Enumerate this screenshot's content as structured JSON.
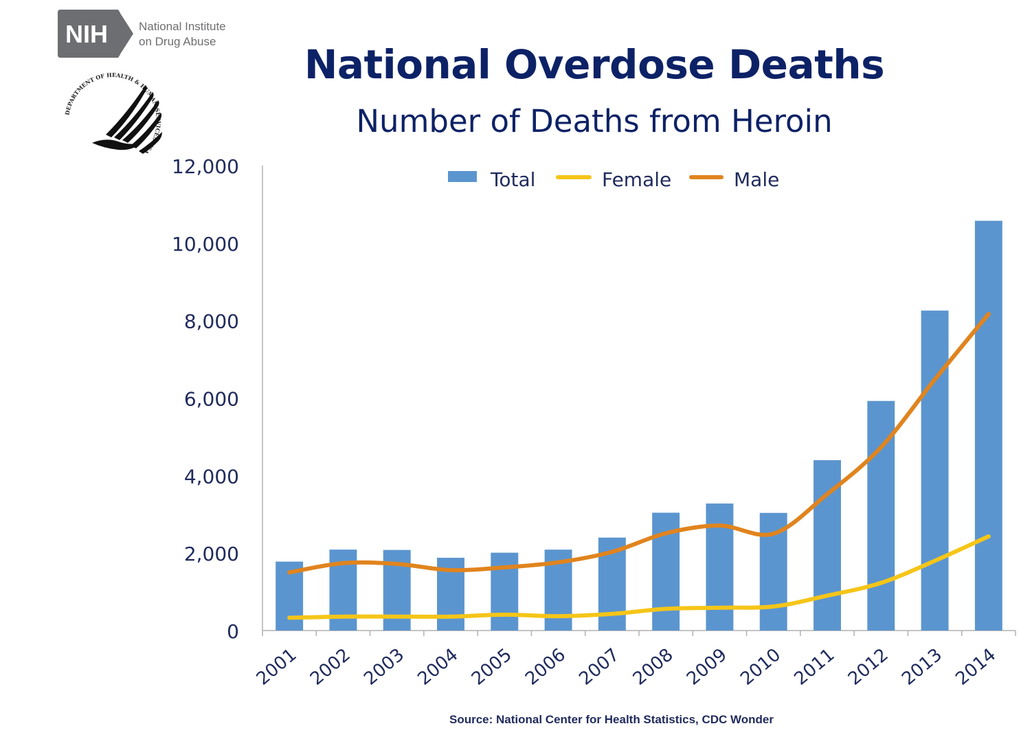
{
  "logo": {
    "abbr": "NIH",
    "line1": "National Institute",
    "line2": "on Drug Abuse",
    "seal_text": "DEPARTMENT OF HEALTH & HUMAN SERVICES·USA"
  },
  "colors": {
    "total": "#5b95cf",
    "female": "#f5c518",
    "male": "#e0841e",
    "text": "#1f2a5c",
    "title": "#0d2266",
    "axis": "#b0b0b0"
  },
  "chart_data": {
    "type": "bar",
    "title": "National Overdose Deaths",
    "subtitle": "Number of Deaths from Heroin",
    "categories": [
      "2001",
      "2002",
      "2003",
      "2004",
      "2005",
      "2006",
      "2007",
      "2008",
      "2009",
      "2010",
      "2011",
      "2012",
      "2013",
      "2014"
    ],
    "series": [
      {
        "name": "Total",
        "kind": "bar",
        "values": [
          1779,
          2089,
          2080,
          1878,
          2009,
          2088,
          2399,
          3041,
          3278,
          3036,
          4397,
          5925,
          8257,
          10574
        ]
      },
      {
        "name": "Female",
        "kind": "line",
        "values": [
          330,
          360,
          360,
          360,
          410,
          370,
          430,
          560,
          590,
          620,
          900,
          1230,
          1800,
          2430
        ]
      },
      {
        "name": "Male",
        "kind": "line",
        "values": [
          1500,
          1740,
          1720,
          1560,
          1630,
          1760,
          2030,
          2510,
          2710,
          2500,
          3520,
          4730,
          6480,
          8170
        ]
      }
    ],
    "ylim": [
      0,
      12000
    ],
    "yticks": [
      "0",
      "2,000",
      "4,000",
      "6,000",
      "8,000",
      "10,000",
      "12,000"
    ],
    "ytick_values": [
      0,
      2000,
      4000,
      6000,
      8000,
      10000,
      12000
    ],
    "xlabel": "",
    "ylabel": "",
    "legend_position": "top-center",
    "grid": false,
    "source": "Source: National Center for Health Statistics, CDC Wonder"
  }
}
